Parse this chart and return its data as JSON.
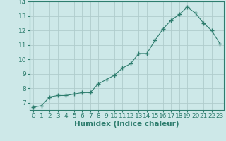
{
  "xlabel": "Humidex (Indice chaleur)",
  "x": [
    0,
    1,
    2,
    3,
    4,
    5,
    6,
    7,
    8,
    9,
    10,
    11,
    12,
    13,
    14,
    15,
    16,
    17,
    18,
    19,
    20,
    21,
    22,
    23
  ],
  "y": [
    6.7,
    6.8,
    7.4,
    7.5,
    7.5,
    7.6,
    7.7,
    7.7,
    8.3,
    8.6,
    8.9,
    9.4,
    9.7,
    10.4,
    10.4,
    11.3,
    12.1,
    12.7,
    13.1,
    13.6,
    13.2,
    12.5,
    12.0,
    11.1
  ],
  "line_color": "#2e7d6e",
  "marker": "+",
  "marker_size": 4,
  "marker_lw": 1.0,
  "bg_color": "#cde8e8",
  "grid_color": "#b0cccc",
  "xlim": [
    -0.5,
    23.5
  ],
  "ylim": [
    6.5,
    14.0
  ],
  "yticks": [
    7,
    8,
    9,
    10,
    11,
    12,
    13,
    14
  ],
  "xticks": [
    0,
    1,
    2,
    3,
    4,
    5,
    6,
    7,
    8,
    9,
    10,
    11,
    12,
    13,
    14,
    15,
    16,
    17,
    18,
    19,
    20,
    21,
    22,
    23
  ],
  "tick_fontsize": 6.5,
  "xlabel_fontsize": 7.5,
  "axis_color": "#2e7d6e",
  "linewidth": 0.8
}
